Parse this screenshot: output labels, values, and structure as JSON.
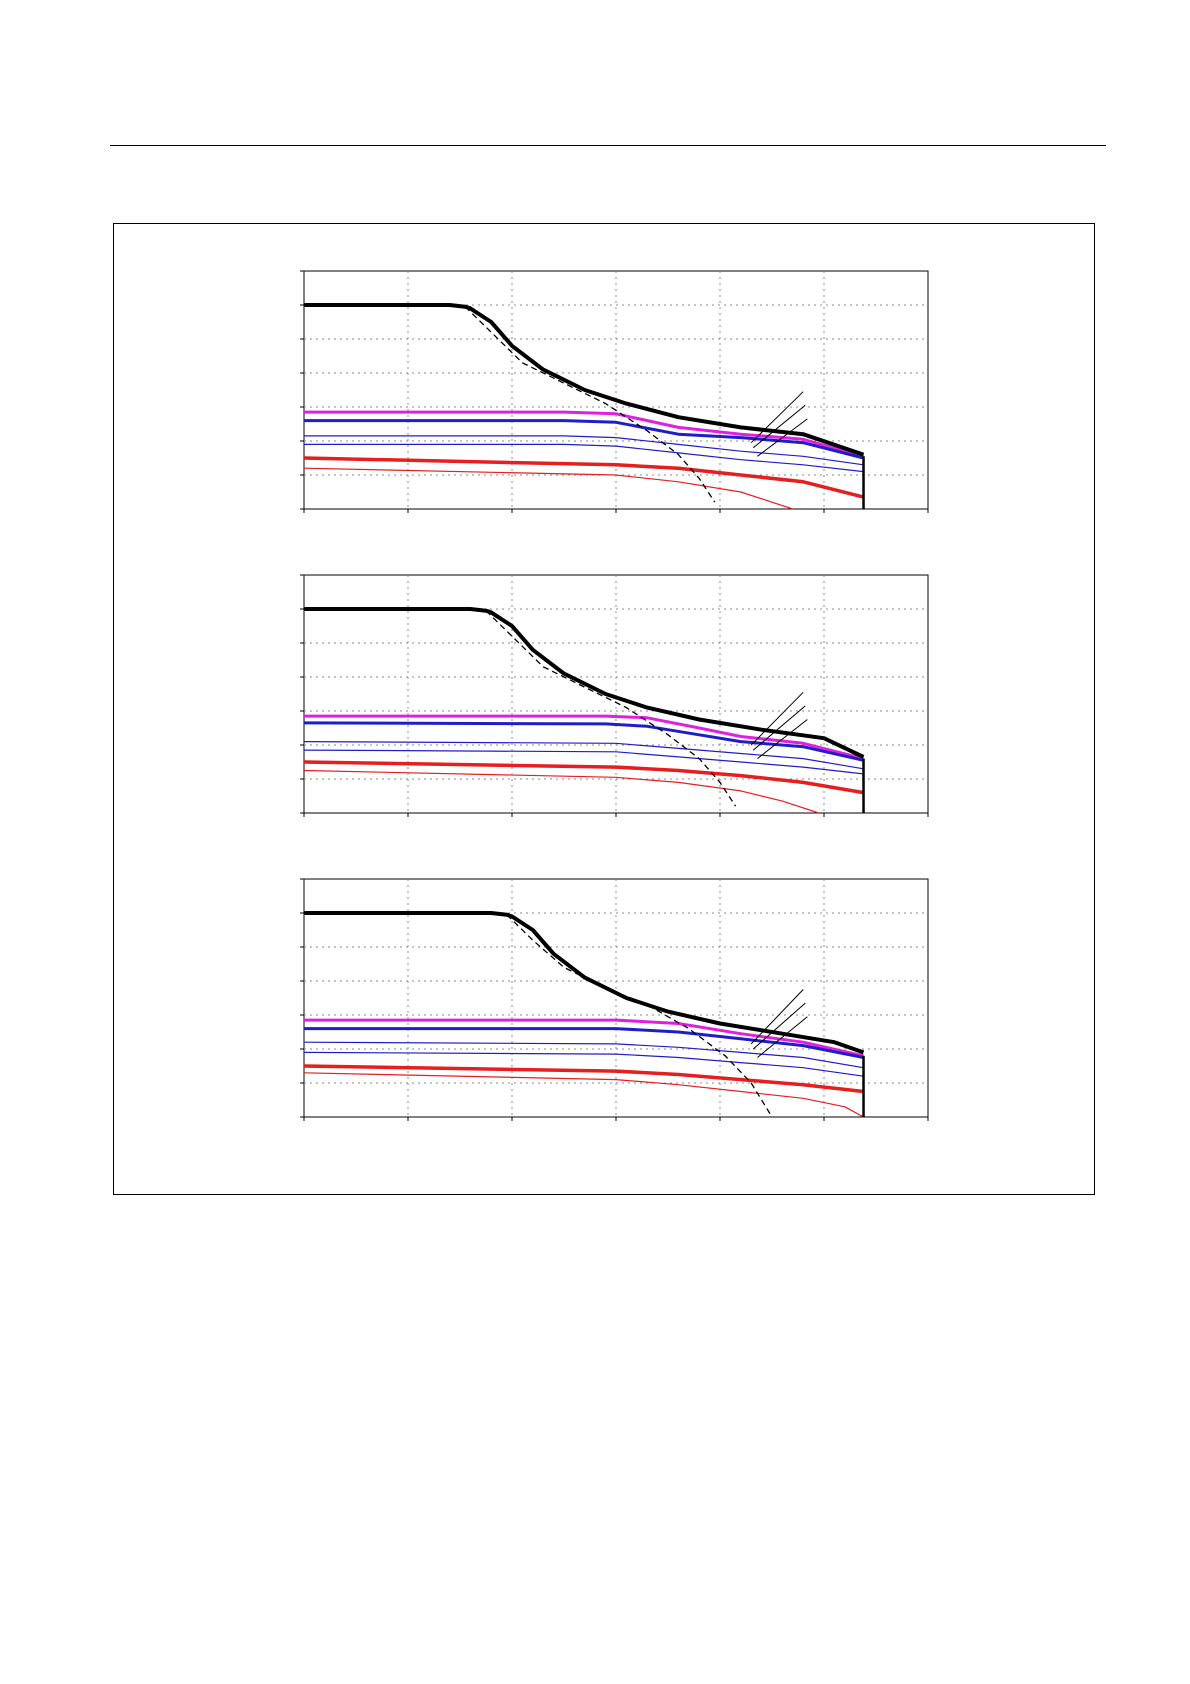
{
  "page": {
    "background": "#ffffff"
  },
  "colors": {
    "peak": "#000000",
    "limit": "#000000",
    "magenta": "#e020e0",
    "blue": "#1e1ec8",
    "red": "#e61e1e",
    "grid": "#8a8a8a",
    "leader": "#000000"
  },
  "chart_data": [
    {
      "type": "line",
      "xlim": [
        0,
        6
      ],
      "ylim": [
        0,
        7
      ],
      "grid": true,
      "legend": "none",
      "peak_curve": {
        "x": [
          0,
          1.4,
          1.55,
          1.6,
          1.8,
          2.0,
          2.3,
          2.7,
          3.1,
          3.6,
          4.2,
          4.8,
          5.38
        ],
        "y": [
          6,
          6,
          5.95,
          5.9,
          5.5,
          4.8,
          4.1,
          3.5,
          3.1,
          2.7,
          2.4,
          2.2,
          1.6
        ]
      },
      "limit_curve": {
        "x": [
          1.55,
          1.8,
          2.1,
          2.5,
          2.9,
          3.3,
          3.6,
          3.8,
          3.95
        ],
        "y": [
          5.95,
          5.2,
          4.3,
          3.7,
          3.1,
          2.3,
          1.6,
          0.9,
          0.2
        ]
      },
      "series": [
        {
          "color": "magenta",
          "width": 3,
          "x": [
            0,
            2.5,
            3.0,
            3.6,
            4.2,
            4.8,
            5.38
          ],
          "y": [
            2.85,
            2.85,
            2.8,
            2.4,
            2.2,
            2.05,
            1.55
          ]
        },
        {
          "color": "blue",
          "width": 3,
          "x": [
            0,
            2.5,
            3.0,
            3.6,
            4.2,
            4.8,
            5.38
          ],
          "y": [
            2.6,
            2.6,
            2.55,
            2.2,
            2.1,
            1.95,
            1.5
          ]
        },
        {
          "color": "blue",
          "width": 1.2,
          "x": [
            0,
            2.5,
            3.0,
            3.6,
            4.2,
            4.8,
            5.38
          ],
          "y": [
            2.15,
            2.15,
            2.1,
            1.9,
            1.7,
            1.55,
            1.3
          ]
        },
        {
          "color": "blue",
          "width": 1.2,
          "x": [
            0,
            2.5,
            3.0,
            3.6,
            4.2,
            4.8,
            5.38
          ],
          "y": [
            1.9,
            1.9,
            1.85,
            1.65,
            1.45,
            1.3,
            1.1
          ]
        },
        {
          "color": "red",
          "width": 3.5,
          "x": [
            0,
            3.0,
            3.6,
            4.2,
            4.8,
            5.38
          ],
          "y": [
            1.5,
            1.3,
            1.2,
            1.0,
            0.8,
            0.35
          ]
        },
        {
          "color": "red",
          "width": 1.2,
          "x": [
            0,
            3.0,
            3.6,
            4.2,
            4.5,
            4.7
          ],
          "y": [
            1.2,
            1.0,
            0.8,
            0.5,
            0.2,
            0.0
          ]
        }
      ],
      "cutoff_x": 5.38,
      "leader_lines": [
        {
          "x1": 4.3,
          "y1": 1.95,
          "x2": 4.8,
          "y2": 3.45
        },
        {
          "x1": 4.32,
          "y1": 1.8,
          "x2": 4.82,
          "y2": 3.05
        },
        {
          "x1": 4.36,
          "y1": 1.55,
          "x2": 4.84,
          "y2": 2.65
        }
      ]
    },
    {
      "type": "line",
      "xlim": [
        0,
        6
      ],
      "ylim": [
        0,
        7
      ],
      "grid": true,
      "legend": "none",
      "peak_curve": {
        "x": [
          0,
          1.6,
          1.75,
          1.8,
          2.0,
          2.2,
          2.5,
          2.9,
          3.3,
          3.8,
          4.4,
          5.0,
          5.38
        ],
        "y": [
          6,
          6,
          5.95,
          5.9,
          5.5,
          4.8,
          4.1,
          3.5,
          3.1,
          2.75,
          2.45,
          2.2,
          1.65
        ]
      },
      "limit_curve": {
        "x": [
          1.75,
          2.0,
          2.3,
          2.7,
          3.1,
          3.5,
          3.8,
          4.0,
          4.15
        ],
        "y": [
          5.95,
          5.2,
          4.3,
          3.7,
          3.1,
          2.3,
          1.6,
          0.9,
          0.2
        ]
      },
      "series": [
        {
          "color": "magenta",
          "width": 3,
          "x": [
            0,
            2.9,
            3.3,
            3.8,
            4.2,
            4.8,
            5.38
          ],
          "y": [
            2.85,
            2.85,
            2.8,
            2.5,
            2.25,
            2.05,
            1.6
          ]
        },
        {
          "color": "blue",
          "width": 3,
          "x": [
            0,
            2.9,
            3.3,
            3.8,
            4.2,
            4.8,
            5.38
          ],
          "y": [
            2.65,
            2.62,
            2.55,
            2.3,
            2.1,
            1.95,
            1.55
          ]
        },
        {
          "color": "blue",
          "width": 1.2,
          "x": [
            0,
            3.0,
            3.6,
            4.2,
            4.8,
            5.38
          ],
          "y": [
            2.1,
            2.05,
            1.9,
            1.75,
            1.6,
            1.3
          ]
        },
        {
          "color": "blue",
          "width": 1.2,
          "x": [
            0,
            3.0,
            3.6,
            4.2,
            4.8,
            5.38
          ],
          "y": [
            1.85,
            1.8,
            1.65,
            1.5,
            1.35,
            1.15
          ]
        },
        {
          "color": "red",
          "width": 3.5,
          "x": [
            0,
            3.0,
            3.6,
            4.2,
            4.8,
            5.38
          ],
          "y": [
            1.5,
            1.35,
            1.25,
            1.1,
            0.9,
            0.6
          ]
        },
        {
          "color": "red",
          "width": 1.2,
          "x": [
            0,
            3.0,
            3.6,
            4.2,
            4.6,
            4.95
          ],
          "y": [
            1.25,
            1.05,
            0.9,
            0.65,
            0.35,
            0.0
          ]
        }
      ],
      "cutoff_x": 5.38,
      "leader_lines": [
        {
          "x1": 4.3,
          "y1": 2.0,
          "x2": 4.8,
          "y2": 3.55
        },
        {
          "x1": 4.32,
          "y1": 1.85,
          "x2": 4.82,
          "y2": 3.15
        },
        {
          "x1": 4.36,
          "y1": 1.6,
          "x2": 4.84,
          "y2": 2.75
        }
      ]
    },
    {
      "type": "line",
      "xlim": [
        0,
        6
      ],
      "ylim": [
        0,
        7
      ],
      "grid": true,
      "legend": "none",
      "peak_curve": {
        "x": [
          0,
          1.8,
          1.95,
          2.0,
          2.2,
          2.4,
          2.7,
          3.1,
          3.5,
          4.0,
          4.6,
          5.1,
          5.38
        ],
        "y": [
          6,
          6,
          5.95,
          5.9,
          5.5,
          4.8,
          4.1,
          3.5,
          3.1,
          2.75,
          2.45,
          2.2,
          1.9
        ]
      },
      "limit_curve": {
        "x": [
          1.95,
          2.2,
          2.5,
          2.9,
          3.3,
          3.7,
          4.05,
          4.3,
          4.5
        ],
        "y": [
          5.95,
          5.2,
          4.4,
          3.8,
          3.3,
          2.6,
          1.8,
          1.0,
          0.0
        ]
      },
      "series": [
        {
          "color": "magenta",
          "width": 3,
          "x": [
            0,
            3.0,
            3.6,
            4.2,
            4.8,
            5.38
          ],
          "y": [
            2.85,
            2.85,
            2.75,
            2.45,
            2.2,
            1.8
          ]
        },
        {
          "color": "blue",
          "width": 3,
          "x": [
            0,
            3.0,
            3.6,
            4.2,
            4.8,
            5.38
          ],
          "y": [
            2.6,
            2.6,
            2.5,
            2.3,
            2.1,
            1.75
          ]
        },
        {
          "color": "blue",
          "width": 1.2,
          "x": [
            0,
            3.0,
            3.6,
            4.2,
            4.8,
            5.38
          ],
          "y": [
            2.2,
            2.15,
            2.05,
            1.9,
            1.75,
            1.45
          ]
        },
        {
          "color": "blue",
          "width": 1.2,
          "x": [
            0,
            3.0,
            3.6,
            4.2,
            4.8,
            5.38
          ],
          "y": [
            1.9,
            1.85,
            1.75,
            1.6,
            1.45,
            1.2
          ]
        },
        {
          "color": "red",
          "width": 3.5,
          "x": [
            0,
            3.0,
            3.6,
            4.2,
            4.8,
            5.38
          ],
          "y": [
            1.5,
            1.35,
            1.25,
            1.1,
            0.95,
            0.75
          ]
        },
        {
          "color": "red",
          "width": 1.2,
          "x": [
            0,
            3.0,
            3.6,
            4.2,
            4.8,
            5.2,
            5.38
          ],
          "y": [
            1.3,
            1.1,
            0.95,
            0.75,
            0.55,
            0.3,
            0.0
          ]
        }
      ],
      "cutoff_x": 5.38,
      "leader_lines": [
        {
          "x1": 4.3,
          "y1": 2.15,
          "x2": 4.8,
          "y2": 3.75
        },
        {
          "x1": 4.32,
          "y1": 2.0,
          "x2": 4.82,
          "y2": 3.35
        },
        {
          "x1": 4.36,
          "y1": 1.75,
          "x2": 4.84,
          "y2": 2.95
        }
      ]
    }
  ]
}
